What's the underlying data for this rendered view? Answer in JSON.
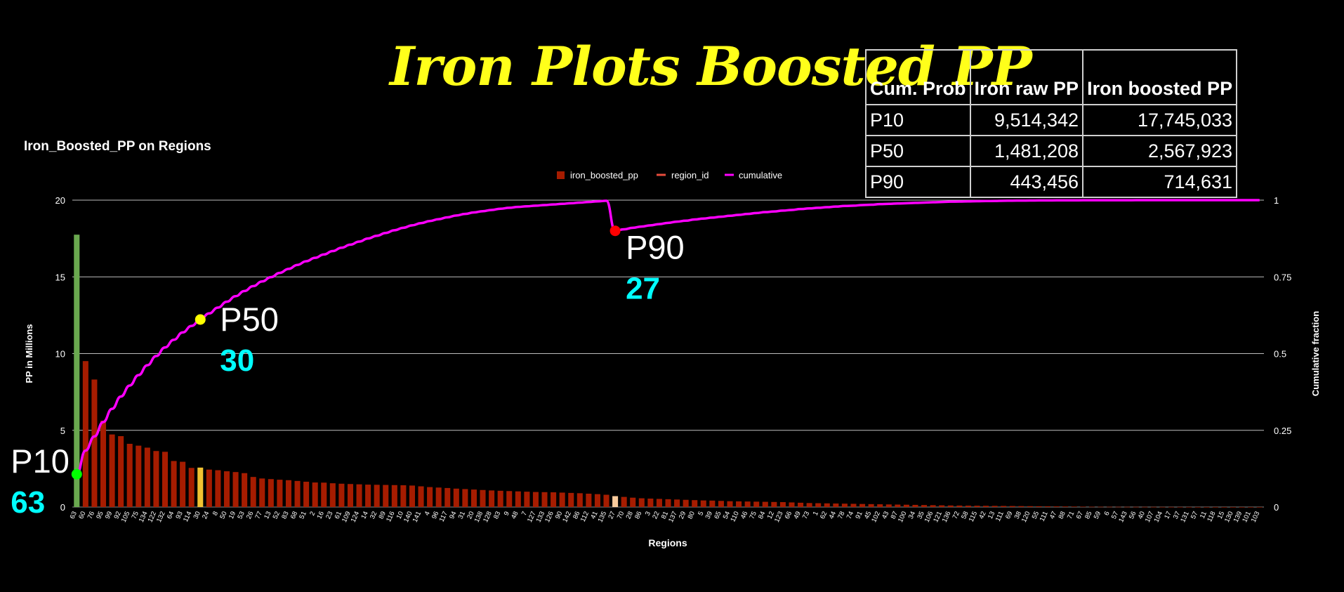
{
  "header": {
    "title": "Iron Plots Boosted PP"
  },
  "stats_table": {
    "headers": [
      "Cum. Prob",
      "Iron raw PP",
      "Iron boosted PP"
    ],
    "rows": [
      [
        "P10",
        "9,514,342",
        "17,745,033"
      ],
      [
        "P50",
        "1,481,208",
        "2,567,923"
      ],
      [
        "P90",
        "443,456",
        "714,631"
      ]
    ]
  },
  "colors": {
    "bars": "#a61c00",
    "p10_bar": "#6aa84f",
    "p50_bar": "#f1c232",
    "p90_bar": "#f9cb9c",
    "cumulative": "#ff00ff",
    "p10_marker": "#00ff00",
    "p50_marker": "#ffff00",
    "p90_marker": "#ff0000",
    "annotation_value": "#00ffff",
    "title": "#ffff1a"
  },
  "chart_data": {
    "type": "bar",
    "title": "Iron_Boosted_PP on Regions",
    "xlabel": "Regions",
    "ylabel": "PP in Millions",
    "y2label": "Cumulative fraction",
    "ylim": [
      0,
      20
    ],
    "y2lim": [
      0,
      1
    ],
    "yticks": [
      0,
      5,
      10,
      15,
      20
    ],
    "y2ticks": [
      "0",
      "0.25",
      "0.5",
      "0.75",
      "1"
    ],
    "grid": true,
    "legend_position": "top",
    "legend": [
      "iron_boosted_pp",
      "region_id",
      "cumulative"
    ],
    "categories": [
      "63",
      "60",
      "76",
      "95",
      "99",
      "92",
      "105",
      "75",
      "134",
      "122",
      "132",
      "64",
      "93",
      "114",
      "30",
      "24",
      "8",
      "50",
      "19",
      "53",
      "26",
      "77",
      "13",
      "52",
      "83",
      "68",
      "51",
      "2",
      "16",
      "23",
      "61",
      "109",
      "124",
      "14",
      "32",
      "89",
      "116",
      "10",
      "140",
      "141",
      "4",
      "96",
      "117",
      "94",
      "31",
      "20",
      "138",
      "128",
      "83",
      "9",
      "48",
      "7",
      "127",
      "133",
      "126",
      "90",
      "142",
      "86",
      "112",
      "41",
      "135",
      "27",
      "70",
      "28",
      "86",
      "3",
      "22",
      "81",
      "137",
      "29",
      "80",
      "5",
      "39",
      "65",
      "54",
      "110",
      "46",
      "75",
      "84",
      "12",
      "123",
      "66",
      "49",
      "73",
      "1",
      "62",
      "44",
      "78",
      "74",
      "91",
      "45",
      "102",
      "43",
      "87",
      "100",
      "34",
      "35",
      "106",
      "121",
      "136",
      "72",
      "58",
      "115",
      "42",
      "13",
      "111",
      "69",
      "38",
      "120",
      "55",
      "111",
      "47",
      "88",
      "71",
      "67",
      "85",
      "59",
      "6",
      "57",
      "143",
      "56",
      "40",
      "107",
      "104",
      "17",
      "37",
      "131",
      "57",
      "11",
      "118",
      "15",
      "130",
      "139",
      "101",
      "103"
    ],
    "values": [
      17.75,
      9.51,
      8.31,
      5.63,
      4.73,
      4.62,
      4.12,
      4.0,
      3.87,
      3.65,
      3.6,
      3.0,
      2.95,
      2.55,
      2.57,
      2.44,
      2.4,
      2.33,
      2.28,
      2.21,
      1.96,
      1.86,
      1.82,
      1.78,
      1.75,
      1.7,
      1.65,
      1.6,
      1.59,
      1.55,
      1.52,
      1.5,
      1.48,
      1.46,
      1.45,
      1.44,
      1.43,
      1.42,
      1.4,
      1.35,
      1.3,
      1.27,
      1.24,
      1.2,
      1.17,
      1.14,
      1.11,
      1.08,
      1.06,
      1.04,
      1.02,
      1.0,
      0.98,
      0.97,
      0.96,
      0.94,
      0.92,
      0.9,
      0.87,
      0.84,
      0.8,
      0.71,
      0.66,
      0.61,
      0.57,
      0.55,
      0.53,
      0.51,
      0.49,
      0.47,
      0.45,
      0.43,
      0.42,
      0.4,
      0.38,
      0.37,
      0.36,
      0.35,
      0.34,
      0.33,
      0.32,
      0.3,
      0.28,
      0.26,
      0.25,
      0.24,
      0.23,
      0.22,
      0.21,
      0.2,
      0.19,
      0.18,
      0.17,
      0.16,
      0.15,
      0.14,
      0.13,
      0.12,
      0.11,
      0.1,
      0.095,
      0.09,
      0.085,
      0.08,
      0.075,
      0.07,
      0.065,
      0.06,
      0.055,
      0.05,
      0.045,
      0.04,
      0.035,
      0.03,
      0.025,
      0.02,
      0.018,
      0.016,
      0.014,
      0.012,
      0.01,
      0.009,
      0.008,
      0.007,
      0.006,
      0.005,
      0.004,
      0.003,
      0.002,
      0.002,
      0.001,
      0.001,
      0.001,
      0.001,
      0.001
    ],
    "cumulative": [
      0.107,
      0.184,
      0.23,
      0.277,
      0.32,
      0.36,
      0.396,
      0.43,
      0.462,
      0.492,
      0.52,
      0.545,
      0.569,
      0.59,
      0.611,
      0.631,
      0.65,
      0.669,
      0.687,
      0.704,
      0.72,
      0.735,
      0.749,
      0.763,
      0.776,
      0.789,
      0.801,
      0.812,
      0.823,
      0.834,
      0.845,
      0.855,
      0.865,
      0.875,
      0.884,
      0.893,
      0.902,
      0.91,
      0.918,
      0.925,
      0.932,
      0.938,
      0.944,
      0.95,
      0.955,
      0.96,
      0.964,
      0.968,
      0.972,
      0.975,
      0.978,
      0.98,
      0.982,
      0.984,
      0.986,
      0.988,
      0.99,
      0.992,
      0.994,
      0.996,
      0.998,
      0.9,
      0.905,
      0.91,
      0.914,
      0.918,
      0.922,
      0.926,
      0.93,
      0.933,
      0.937,
      0.94,
      0.943,
      0.946,
      0.949,
      0.952,
      0.955,
      0.958,
      0.961,
      0.963,
      0.966,
      0.968,
      0.971,
      0.973,
      0.975,
      0.977,
      0.979,
      0.981,
      0.982,
      0.984,
      0.985,
      0.987,
      0.988,
      0.989,
      0.99,
      0.991,
      0.992,
      0.993,
      0.994,
      0.995,
      0.9955,
      0.996,
      0.9965,
      0.997,
      0.9975,
      0.998,
      0.9983,
      0.9986,
      0.9988,
      0.999,
      0.9992,
      0.9993,
      0.9994,
      0.9995,
      0.9996,
      0.9997,
      0.9997,
      0.9998,
      0.9998,
      0.9998,
      0.9999,
      0.9999,
      0.9999,
      0.9999,
      0.9999,
      1.0,
      1.0,
      1.0,
      1.0,
      1.0,
      1.0,
      1.0,
      1.0,
      1.0,
      1.0
    ],
    "highlights": [
      {
        "label": "P10",
        "value": "63",
        "index": 0
      },
      {
        "label": "P50",
        "value": "30",
        "index": 14
      },
      {
        "label": "P90",
        "value": "27",
        "index": 61
      }
    ]
  }
}
